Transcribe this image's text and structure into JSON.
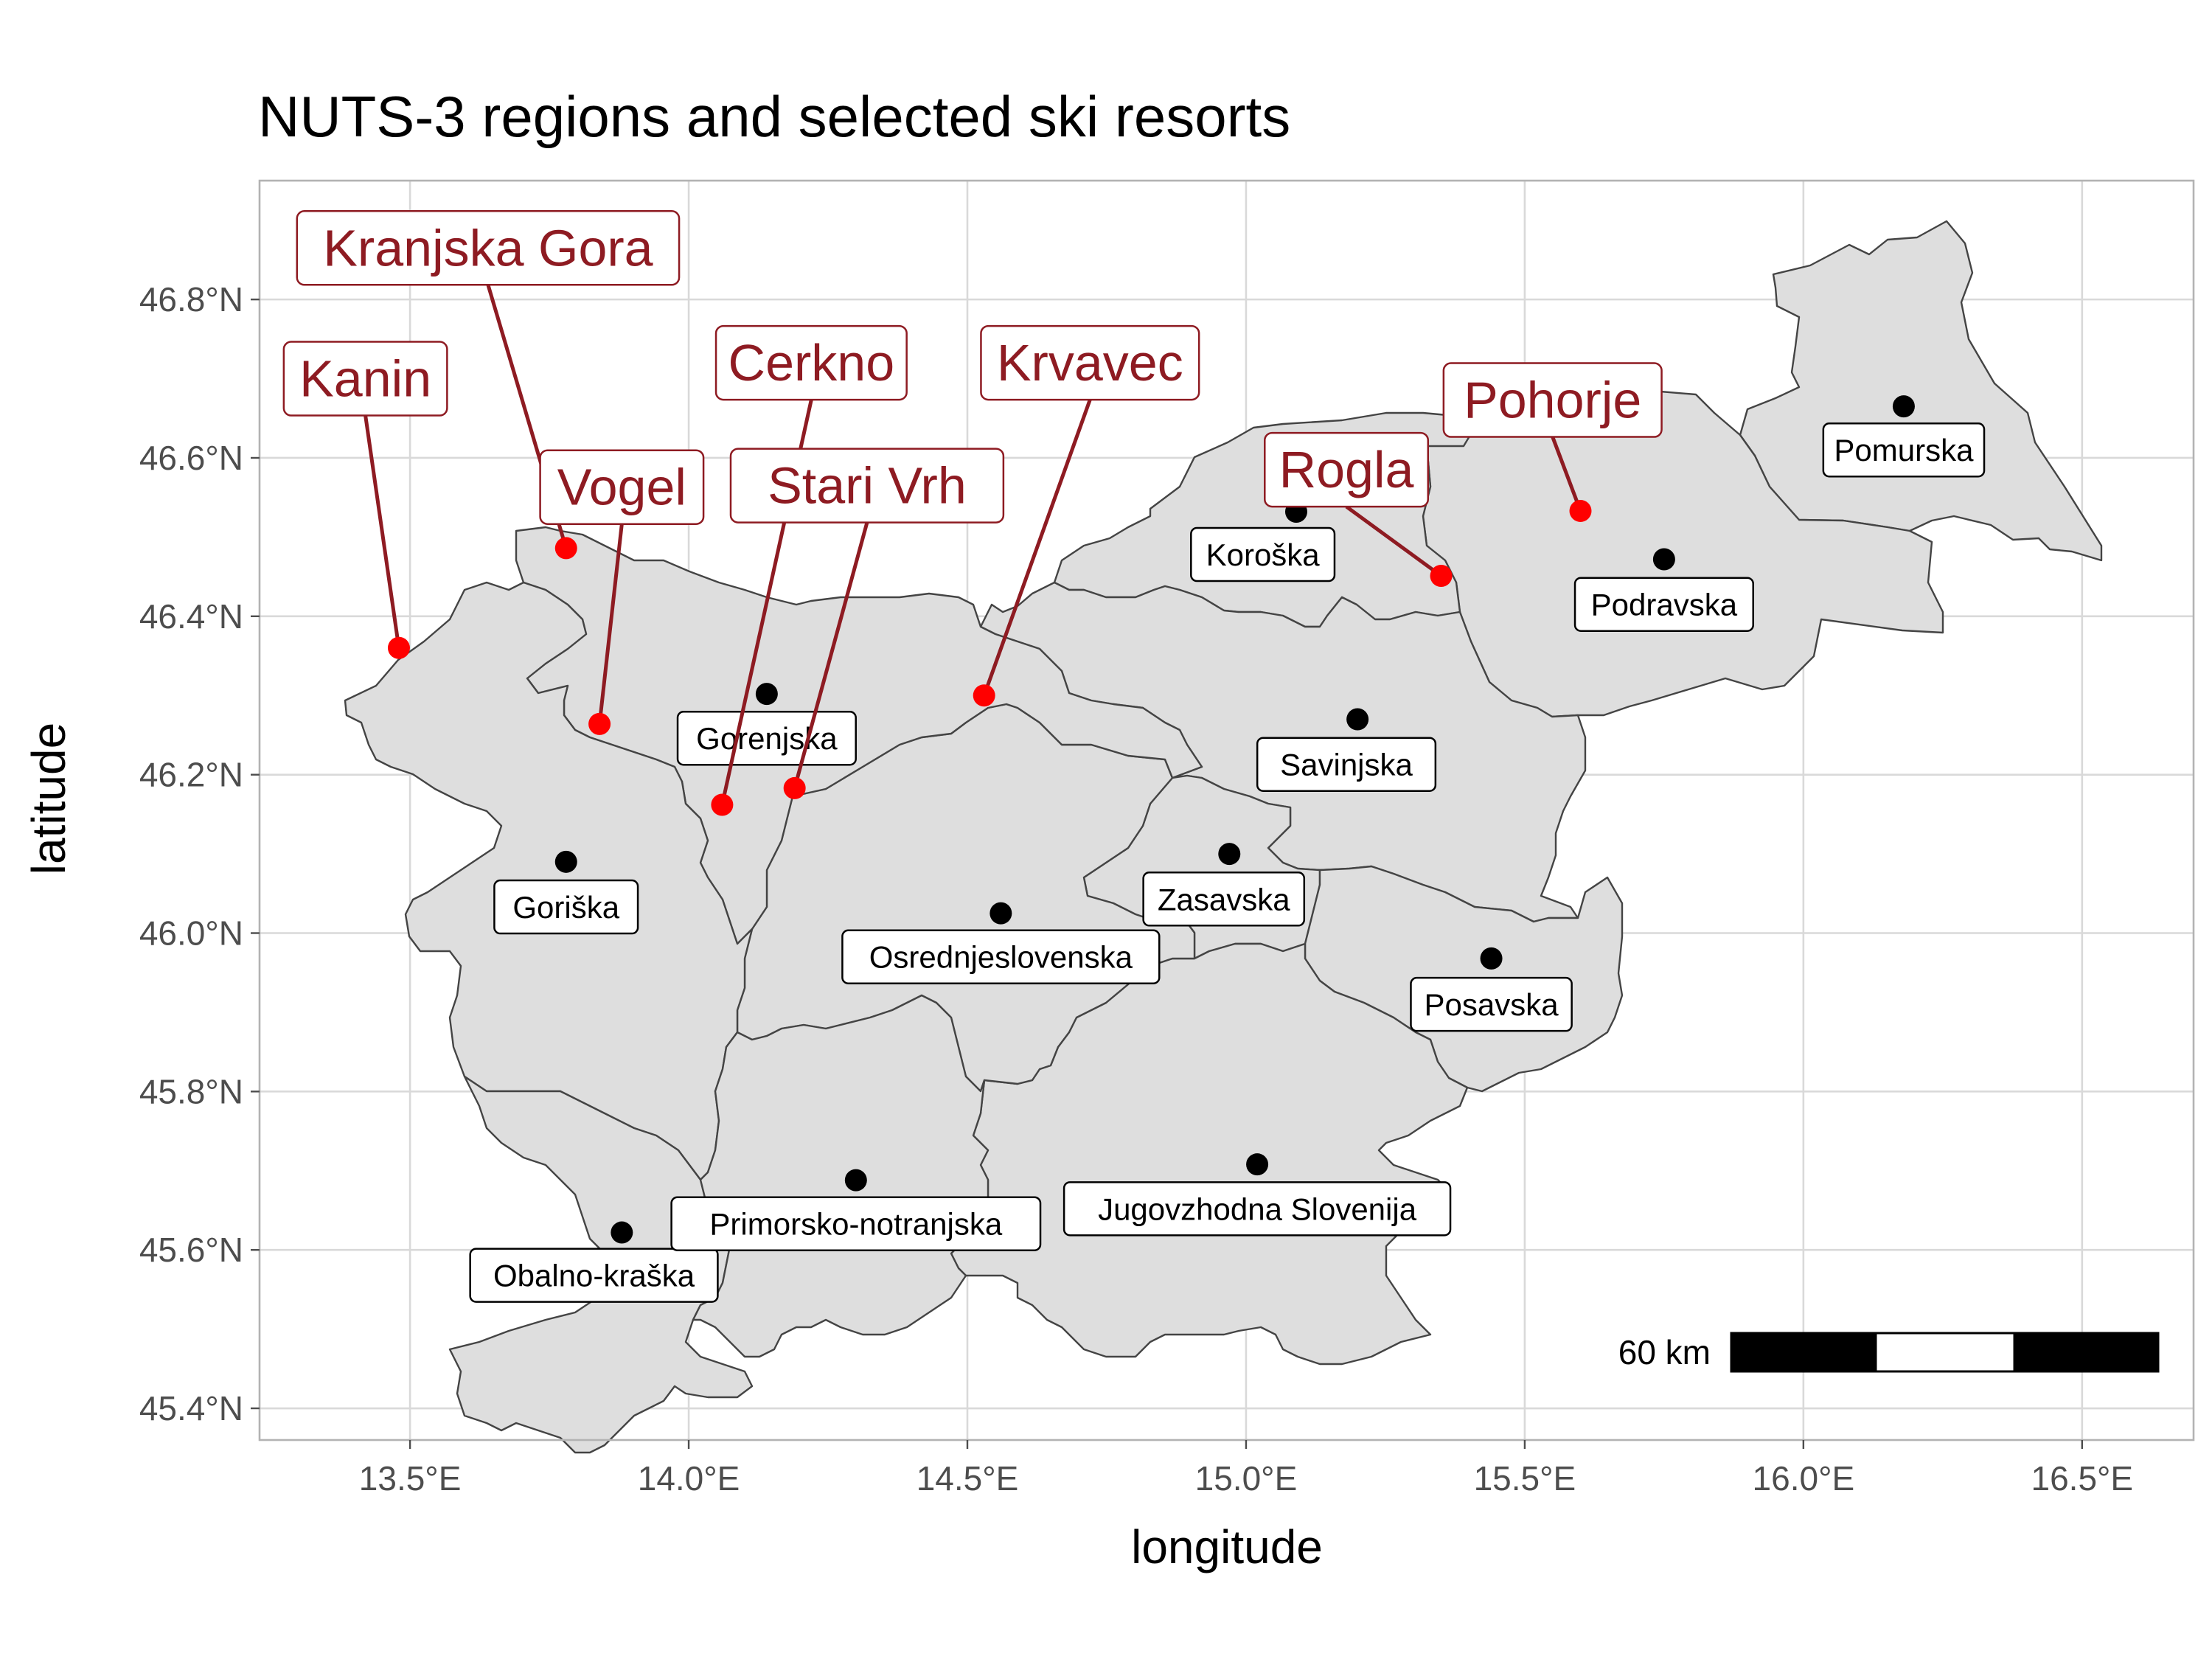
{
  "map": {
    "title": "NUTS-3 regions and selected ski resorts",
    "xlabel": "longitude",
    "ylabel": "latitude",
    "x_ticks": [
      {
        "value": 13.5,
        "label": "13.5°E"
      },
      {
        "value": 14.0,
        "label": "14.0°E"
      },
      {
        "value": 14.5,
        "label": "14.5°E"
      },
      {
        "value": 15.0,
        "label": "15.0°E"
      },
      {
        "value": 15.5,
        "label": "15.5°E"
      },
      {
        "value": 16.0,
        "label": "16.0°E"
      },
      {
        "value": 16.5,
        "label": "16.5°E"
      }
    ],
    "y_ticks": [
      {
        "value": 45.4,
        "label": "45.4°N"
      },
      {
        "value": 45.6,
        "label": "45.6°N"
      },
      {
        "value": 45.8,
        "label": "45.8°N"
      },
      {
        "value": 46.0,
        "label": "46.0°N"
      },
      {
        "value": 46.2,
        "label": "46.2°N"
      },
      {
        "value": 46.4,
        "label": "46.4°N"
      },
      {
        "value": 46.6,
        "label": "46.6°N"
      },
      {
        "value": 46.8,
        "label": "46.8°N"
      }
    ],
    "xlim": [
      13.23,
      16.7
    ],
    "ylim": [
      45.36,
      46.95
    ],
    "grid": true,
    "colors": {
      "region_fill": "#dedede",
      "region_border": "#444444",
      "resort_point": "#ff0000",
      "resort_label": "#8e1b22",
      "centroid": "#000000"
    },
    "regions": [
      {
        "name": "Pomurska",
        "centroid": [
          16.18,
          46.665
        ],
        "label_at": [
          16.18,
          46.61
        ]
      },
      {
        "name": "Podravska",
        "centroid": [
          15.75,
          46.472
        ],
        "label_at": [
          15.75,
          46.415
        ]
      },
      {
        "name": "Koroška",
        "centroid": [
          15.09,
          46.532
        ],
        "label_at": [
          15.03,
          46.478
        ]
      },
      {
        "name": "Savinjska",
        "centroid": [
          15.2,
          46.27
        ],
        "label_at": [
          15.18,
          46.213
        ]
      },
      {
        "name": "Zasavska",
        "centroid": [
          14.97,
          46.1
        ],
        "label_at": [
          14.96,
          46.043
        ]
      },
      {
        "name": "Posavska",
        "centroid": [
          15.44,
          45.968
        ],
        "label_at": [
          15.44,
          45.91
        ]
      },
      {
        "name": "Jugovzhodna Slovenija",
        "centroid": [
          15.02,
          45.708
        ],
        "label_at": [
          15.02,
          45.652
        ]
      },
      {
        "name": "Osrednjeslovenska",
        "centroid": [
          14.56,
          46.025
        ],
        "label_at": [
          14.56,
          45.97
        ]
      },
      {
        "name": "Gorenjska",
        "centroid": [
          14.14,
          46.302
        ],
        "label_at": [
          14.14,
          46.246
        ]
      },
      {
        "name": "Goriška",
        "centroid": [
          13.78,
          46.09
        ],
        "label_at": [
          13.78,
          46.033
        ]
      },
      {
        "name": "Obalno-kraška",
        "centroid": [
          13.88,
          45.622
        ],
        "label_at": [
          13.83,
          45.568
        ]
      },
      {
        "name": "Primorsko-notranjska",
        "centroid": [
          14.3,
          45.688
        ],
        "label_at": [
          14.3,
          45.633
        ]
      }
    ],
    "resorts": [
      {
        "name": "Kranjska Gora",
        "lon": 13.78,
        "lat": 46.486,
        "label_at": [
          13.64,
          46.865
        ]
      },
      {
        "name": "Kanin",
        "lon": 13.48,
        "lat": 46.36,
        "label_at": [
          13.42,
          46.7
        ]
      },
      {
        "name": "Vogel",
        "lon": 13.84,
        "lat": 46.264,
        "label_at": [
          13.88,
          46.563
        ]
      },
      {
        "name": "Cerkno",
        "lon": 14.06,
        "lat": 46.162,
        "label_at": [
          14.22,
          46.72
        ]
      },
      {
        "name": "Stari Vrh",
        "lon": 14.19,
        "lat": 46.183,
        "label_at": [
          14.32,
          46.565
        ]
      },
      {
        "name": "Krvavec",
        "lon": 14.53,
        "lat": 46.3,
        "label_at": [
          14.72,
          46.72
        ]
      },
      {
        "name": "Rogla",
        "lon": 15.35,
        "lat": 46.451,
        "label_at": [
          15.18,
          46.585
        ]
      },
      {
        "name": "Pohorje",
        "lon": 15.6,
        "lat": 46.533,
        "label_at": [
          15.55,
          46.673
        ]
      }
    ],
    "scalebar": {
      "label": "60 km"
    }
  }
}
